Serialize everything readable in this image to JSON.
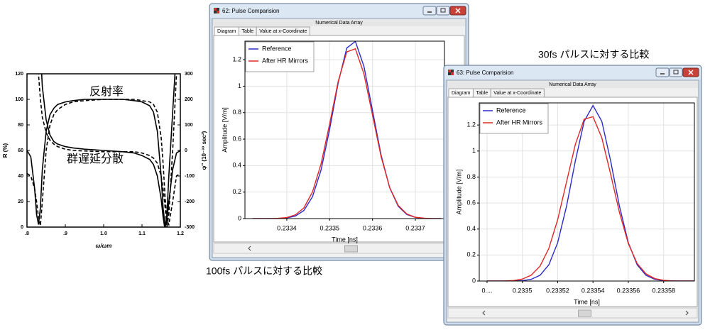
{
  "chart_data": [
    {
      "type": "line",
      "xlabel": "ω/ωm",
      "ylabel": "R (%)",
      "y2label": "φ'' (10⁻³⁰ sec²)",
      "annotations": [
        "反射率",
        "群遅延分散"
      ],
      "x": [
        0.8,
        0.81,
        0.82,
        0.825,
        0.83,
        0.835,
        0.84,
        0.85,
        0.86,
        0.87,
        0.88,
        0.9,
        0.92,
        0.95,
        1.0,
        1.05,
        1.08,
        1.1,
        1.12,
        1.13,
        1.14,
        1.15,
        1.155,
        1.16,
        1.165,
        1.17,
        1.18,
        1.19,
        1.2
      ],
      "series": [
        {
          "color": "#000000",
          "dash": false,
          "values": [
            60,
            55,
            30,
            10,
            2,
            15,
            45,
            75,
            88,
            93,
            96,
            98,
            99,
            100,
            100,
            100,
            99,
            98,
            95,
            90,
            75,
            40,
            15,
            2,
            5,
            20,
            45,
            58,
            60
          ]
        },
        {
          "color": "#000000",
          "dash": true,
          "values": [
            42,
            40,
            30,
            20,
            8,
            1,
            20,
            60,
            80,
            88,
            92,
            96,
            98,
            99,
            100,
            100,
            100,
            99,
            98,
            96,
            90,
            70,
            50,
            25,
            5,
            2,
            20,
            40,
            42
          ]
        },
        {
          "color": "#000000",
          "dash": false,
          "axis": "y2",
          "values": [
            null,
            null,
            null,
            null,
            null,
            400,
            250,
            120,
            60,
            35,
            25,
            15,
            10,
            5,
            0,
            -5,
            -10,
            -20,
            -35,
            -55,
            -100,
            -190,
            -260,
            -310,
            -250,
            -100,
            150,
            400,
            null
          ]
        },
        {
          "color": "#000000",
          "dash": true,
          "axis": "y2",
          "values": [
            null,
            null,
            null,
            400,
            300,
            200,
            130,
            70,
            40,
            25,
            15,
            5,
            0,
            -2,
            -5,
            -5,
            -5,
            -10,
            -20,
            -30,
            -50,
            -100,
            -150,
            -220,
            -300,
            -250,
            0,
            300,
            null
          ]
        }
      ],
      "xlim": [
        0.8,
        1.2
      ],
      "xticks": [
        {
          "value": 0.8,
          "label": ".8"
        },
        {
          "value": 0.9,
          "label": ".9"
        },
        {
          "value": 1.0,
          "label": "1.0"
        },
        {
          "value": 1.1,
          "label": "1.1"
        },
        {
          "value": 1.2,
          "label": "1.2"
        }
      ],
      "ylim": [
        0,
        120
      ],
      "yticks": [
        0,
        20,
        40,
        60,
        80,
        100,
        120
      ],
      "y2lim": [
        -300,
        300
      ],
      "y2ticks": [
        -300,
        -200,
        -100,
        0,
        100,
        200,
        300
      ],
      "grid": false
    },
    {
      "type": "line",
      "xlabel": "Time [ns]",
      "ylabel": "Amplitude [V/m]",
      "legend": "upper left",
      "x": [
        0.23332,
        0.23334,
        0.23336,
        0.23338,
        0.2334,
        0.23342,
        0.23344,
        0.23346,
        0.23348,
        0.2335,
        0.23352,
        0.23354,
        0.23356,
        0.23358,
        0.2336,
        0.23362,
        0.23364,
        0.23366,
        0.23368,
        0.2337,
        0.23372,
        0.23374,
        0.23376
      ],
      "series": [
        {
          "name": "Reference",
          "color": "#2b2bc8",
          "values": [
            0,
            0,
            0,
            0.001,
            0.005,
            0.019,
            0.061,
            0.165,
            0.367,
            0.675,
            1.026,
            1.288,
            1.338,
            1.15,
            0.816,
            0.48,
            0.233,
            0.093,
            0.031,
            0.009,
            0.002,
            0,
            0
          ]
        },
        {
          "name": "After HR Mirrors",
          "color": "#e02828",
          "values": [
            0,
            0,
            0,
            0.002,
            0.008,
            0.028,
            0.081,
            0.201,
            0.413,
            0.715,
            1.037,
            1.259,
            1.282,
            1.093,
            0.781,
            0.468,
            0.235,
            0.099,
            0.035,
            0.01,
            0.003,
            0,
            0
          ]
        }
      ],
      "xlim": [
        0.2333025,
        0.2337678
      ],
      "xticks": [
        0.2334,
        0.2335,
        0.2336,
        0.2337
      ],
      "ylim": [
        0,
        1.34
      ],
      "yticks": [
        0,
        0.2,
        0.4,
        0.6,
        0.8,
        1,
        1.2
      ],
      "grid": true
    },
    {
      "type": "line",
      "xlabel": "Time [ns]",
      "ylabel": "Amplitude [V/m]",
      "legend": "upper left",
      "x": [
        0.23348,
        0.233485,
        0.23349,
        0.233495,
        0.2335,
        0.233505,
        0.23351,
        0.233515,
        0.23352,
        0.233525,
        0.23353,
        0.233535,
        0.23354,
        0.233545,
        0.23355,
        0.233555,
        0.23356,
        0.233565,
        0.23357,
        0.233575,
        0.23358,
        0.233585,
        0.23359,
        0.233595,
        0.2336
      ],
      "series": [
        {
          "name": "Reference",
          "color": "#2b2bc8",
          "values": [
            0,
            0,
            0,
            0.001,
            0.003,
            0.013,
            0.044,
            0.125,
            0.295,
            0.574,
            0.923,
            1.228,
            1.35,
            1.228,
            0.923,
            0.574,
            0.295,
            0.125,
            0.044,
            0.013,
            0.003,
            0.001,
            0,
            0,
            0
          ]
        },
        {
          "name": "After HR Mirrors",
          "color": "#e02828",
          "values": [
            0,
            0,
            0.001,
            0.004,
            0.015,
            0.045,
            0.114,
            0.251,
            0.472,
            0.761,
            1.051,
            1.245,
            1.264,
            1.101,
            0.821,
            0.526,
            0.288,
            0.135,
            0.055,
            0.019,
            0.006,
            0.001,
            0,
            0,
            0
          ]
        }
      ],
      "xlim": [
        0.2334756,
        0.2335974
      ],
      "xticks": [
        {
          "value": 0.23348,
          "label": "0...."
        },
        0.2335,
        0.23352,
        0.23354,
        0.23356,
        0.23358
      ],
      "ylim": [
        0,
        1.37
      ],
      "yticks": [
        0,
        0.2,
        0.4,
        0.6,
        0.8,
        1,
        1.2
      ],
      "grid": true
    }
  ],
  "windows": [
    {
      "title": "62: Pulse Comparision",
      "header": "Numerical Data Array",
      "tabs": [
        "Diagram",
        "Table",
        "Value at x-Coordinate"
      ]
    },
    {
      "title": "63: Pulse Comparision",
      "header": "Numerical Data Array",
      "tabs": [
        "Diagram",
        "Table",
        "Value at x-Coordinate"
      ]
    }
  ],
  "captions": [
    "100fs パルスに対する比較",
    "30fs パルスに対する比較"
  ]
}
